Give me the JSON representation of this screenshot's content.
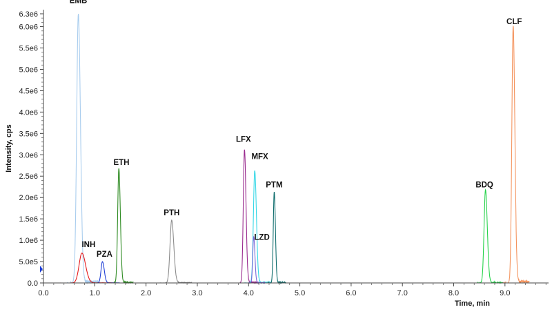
{
  "chart_data": {
    "type": "line",
    "xlabel": "Time, min",
    "ylabel": "Intensity, cps",
    "xlim": [
      0.0,
      9.85
    ],
    "ylim": [
      0,
      6300000
    ],
    "x_ticks": [
      {
        "value": 0.0,
        "label": "0.0"
      },
      {
        "value": 1.0,
        "label": "1.0"
      },
      {
        "value": 2.0,
        "label": "2.0"
      },
      {
        "value": 3.0,
        "label": "3.0"
      },
      {
        "value": 4.0,
        "label": "4.0"
      },
      {
        "value": 5.0,
        "label": "5.0"
      },
      {
        "value": 6.0,
        "label": "6.0"
      },
      {
        "value": 7.0,
        "label": "7.0"
      },
      {
        "value": 8.0,
        "label": "8.0"
      },
      {
        "value": 9.0,
        "label": "9.0"
      }
    ],
    "y_ticks": [
      {
        "value": 0,
        "label": "0.0"
      },
      {
        "value": 500000,
        "label": "5.0e5"
      },
      {
        "value": 1000000,
        "label": "1.0e6"
      },
      {
        "value": 1500000,
        "label": "1.5e6"
      },
      {
        "value": 2000000,
        "label": "2.0e6"
      },
      {
        "value": 2500000,
        "label": "2.5e6"
      },
      {
        "value": 3000000,
        "label": "3.0e6"
      },
      {
        "value": 3500000,
        "label": "3.5e6"
      },
      {
        "value": 4000000,
        "label": "4.0e6"
      },
      {
        "value": 4500000,
        "label": "4.5e6"
      },
      {
        "value": 5000000,
        "label": "5.0e6"
      },
      {
        "value": 5500000,
        "label": "5.5e6"
      },
      {
        "value": 6000000,
        "label": "6.0e6"
      },
      {
        "value": 6300000,
        "label": "6.3e6"
      }
    ],
    "series": [
      {
        "name": "EMB",
        "color": "#a9cdee",
        "rt": 0.68,
        "apex": 6300000,
        "width": 0.035,
        "label_x": 0.68,
        "label_y": 6550000
      },
      {
        "name": "INH",
        "color": "#e41a1c",
        "rt": 0.75,
        "apex": 700000,
        "width": 0.06,
        "label_x": 0.88,
        "label_y": 840000
      },
      {
        "name": "PZA",
        "color": "#1f3fd6",
        "rt": 1.15,
        "apex": 500000,
        "width": 0.03,
        "label_x": 1.19,
        "label_y": 610000
      },
      {
        "name": "ETH",
        "color": "#2e8b22",
        "rt": 1.47,
        "apex": 2680000,
        "width": 0.025,
        "label_x": 1.52,
        "label_y": 2760000
      },
      {
        "name": "PTH",
        "color": "#8c8c8c",
        "rt": 2.5,
        "apex": 1470000,
        "width": 0.035,
        "label_x": 2.5,
        "label_y": 1580000
      },
      {
        "name": "LFX",
        "color": "#9a2b8f",
        "rt": 3.92,
        "apex": 3120000,
        "width": 0.025,
        "label_x": 3.9,
        "label_y": 3300000
      },
      {
        "name": "MFX",
        "color": "#35d7e6",
        "rt": 4.12,
        "apex": 2630000,
        "width": 0.028,
        "label_x": 4.22,
        "label_y": 2900000
      },
      {
        "name": "LZD",
        "color": "#7b68d8",
        "rt": 4.1,
        "apex": 1080000,
        "width": 0.02,
        "label_x": 4.26,
        "label_y": 1010000
      },
      {
        "name": "PTM",
        "color": "#0f6d6d",
        "rt": 4.5,
        "apex": 2130000,
        "width": 0.02,
        "label_x": 4.5,
        "label_y": 2240000
      },
      {
        "name": "BDQ",
        "color": "#25d34a",
        "rt": 8.62,
        "apex": 2180000,
        "width": 0.03,
        "label_x": 8.6,
        "label_y": 2240000
      },
      {
        "name": "CLF",
        "color": "#f4945e",
        "rt": 9.16,
        "apex": 6020000,
        "width": 0.028,
        "label_x": 9.18,
        "label_y": 6060000
      }
    ],
    "grid": false,
    "legend": "none"
  }
}
